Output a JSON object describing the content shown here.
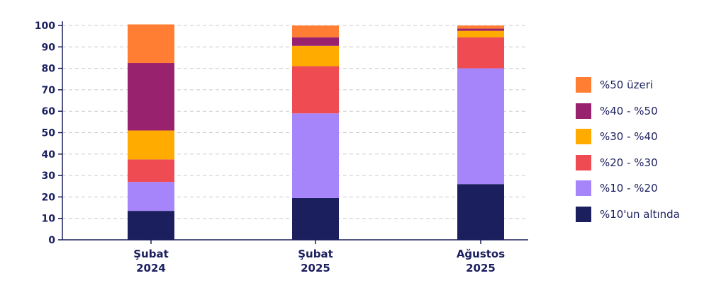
{
  "chart_data": {
    "type": "bar",
    "stacked": true,
    "categories": [
      [
        "Şubat",
        "2024"
      ],
      [
        "Şubat",
        "2025"
      ],
      [
        "Ağustos",
        "2025"
      ]
    ],
    "series": [
      {
        "name": "%10'un altında",
        "color": "#1b1f5e",
        "values": [
          13.5,
          19.5,
          26
        ]
      },
      {
        "name": "%10 - %20",
        "color": "#a685fb",
        "values": [
          13.5,
          39.5,
          54
        ]
      },
      {
        "name": "%20 - %30",
        "color": "#ee4b53",
        "values": [
          10.5,
          22,
          14.5
        ]
      },
      {
        "name": "%30 - %40",
        "color": "#ffab00",
        "values": [
          13.5,
          9.5,
          3
        ]
      },
      {
        "name": "%40 - %50",
        "color": "#99226e",
        "values": [
          31.5,
          4,
          1
        ]
      },
      {
        "name": "%50 üzeri",
        "color": "#ff7e34",
        "values": [
          18,
          5.5,
          1.5
        ]
      }
    ],
    "yticks": [
      0,
      10,
      20,
      30,
      40,
      50,
      60,
      70,
      80,
      90,
      100
    ],
    "ylim": [
      0,
      100
    ],
    "grid": true,
    "legend_position": "right",
    "title": "",
    "xlabel": "",
    "ylabel": ""
  }
}
